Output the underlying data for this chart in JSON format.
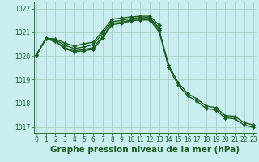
{
  "title": "Graphe pression niveau de la mer (hPa)",
  "background_color": "#c8eef0",
  "grid_color": "#a0ccbb",
  "line_color": "#1a5e20",
  "series": [
    {
      "name": "line1_upper",
      "x": [
        0,
        1,
        2,
        3,
        4,
        5,
        6,
        7,
        8,
        9,
        10,
        11,
        12,
        13
      ],
      "y": [
        1020.05,
        1020.75,
        1020.72,
        1020.55,
        1020.42,
        1020.52,
        1020.58,
        1021.05,
        1021.55,
        1021.6,
        1021.65,
        1021.68,
        1021.68,
        1021.3
      ]
    },
    {
      "name": "line2_upper",
      "x": [
        0,
        1,
        2,
        3,
        4,
        5,
        6,
        7,
        8,
        9,
        10,
        11,
        12,
        13
      ],
      "y": [
        1020.05,
        1020.75,
        1020.68,
        1020.45,
        1020.32,
        1020.38,
        1020.48,
        1020.95,
        1021.45,
        1021.5,
        1021.58,
        1021.62,
        1021.62,
        1021.18
      ]
    },
    {
      "name": "line3_lower",
      "x": [
        0,
        1,
        2,
        3,
        4,
        5,
        6,
        7,
        8,
        9,
        10,
        11,
        12,
        13,
        14,
        15,
        16,
        17,
        18,
        19,
        20,
        21,
        22,
        23
      ],
      "y": [
        1020.05,
        1020.72,
        1020.62,
        1020.35,
        1020.22,
        1020.28,
        1020.35,
        1020.82,
        1021.38,
        1021.42,
        1021.52,
        1021.58,
        1021.58,
        1021.1,
        1019.62,
        1018.88,
        1018.42,
        1018.18,
        1017.88,
        1017.82,
        1017.48,
        1017.45,
        1017.18,
        1017.08
      ]
    },
    {
      "name": "line4_lower",
      "x": [
        0,
        1,
        2,
        3,
        4,
        5,
        6,
        7,
        8,
        9,
        10,
        11,
        12,
        13,
        14,
        15,
        16,
        17,
        18,
        19,
        20,
        21,
        22,
        23
      ],
      "y": [
        1020.05,
        1020.72,
        1020.62,
        1020.3,
        1020.18,
        1020.22,
        1020.28,
        1020.75,
        1021.32,
        1021.38,
        1021.48,
        1021.52,
        1021.52,
        1021.02,
        1019.52,
        1018.78,
        1018.32,
        1018.08,
        1017.78,
        1017.72,
        1017.38,
        1017.35,
        1017.08,
        1016.98
      ]
    }
  ],
  "ylim": [
    1016.75,
    1022.3
  ],
  "yticks": [
    1017,
    1018,
    1019,
    1020,
    1021,
    1022
  ],
  "xlim": [
    -0.3,
    23.3
  ],
  "xticks": [
    0,
    1,
    2,
    3,
    4,
    5,
    6,
    7,
    8,
    9,
    10,
    11,
    12,
    13,
    14,
    15,
    16,
    17,
    18,
    19,
    20,
    21,
    22,
    23
  ],
  "marker": "D",
  "marker_size": 2.2,
  "line_width": 1.0,
  "title_fontsize": 7.5,
  "tick_fontsize": 5.5,
  "fig_width": 3.2,
  "fig_height": 2.0,
  "dpi": 100
}
